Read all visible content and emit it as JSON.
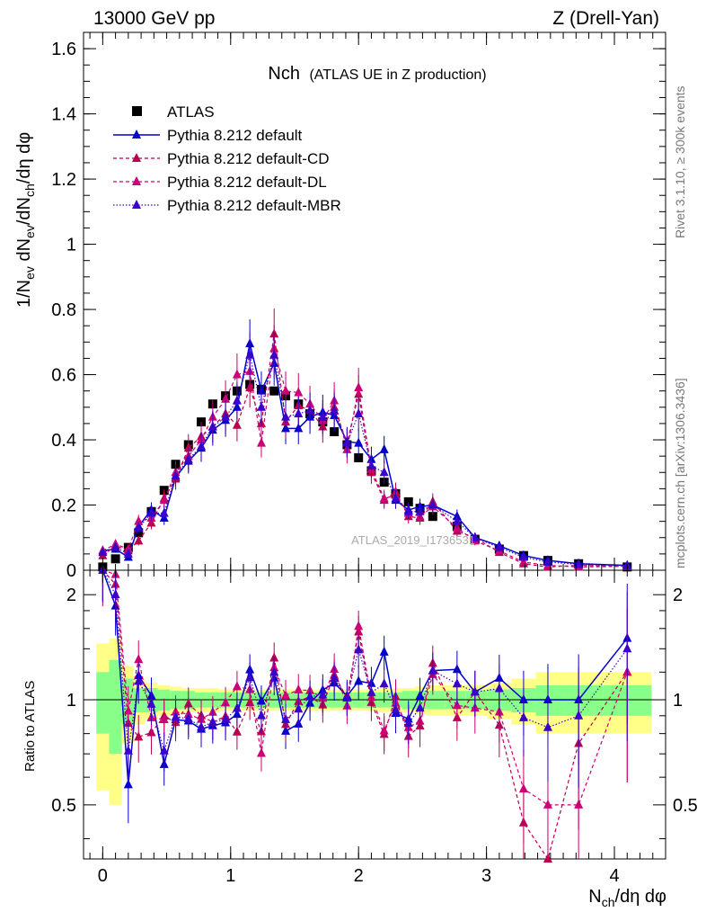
{
  "header": {
    "beam": "13000 GeV pp",
    "process": "Z (Drell-Yan)",
    "rivet": "Rivet 3.1.10, ≥ 300k events",
    "site": "mcplots.cern.ch [arXiv:1306.3436]",
    "watermark": "ATLAS_2019_I1736531"
  },
  "chart_data": {
    "type": "scatter",
    "title": "Nch",
    "subtitle": "(ATLAS UE in Z production)",
    "xlabel": "N_ch/dη dφ",
    "ylabel": "1/N_ev dN_ev/dN_ch/dη dφ",
    "ratio_ylabel": "Ratio to ATLAS",
    "xlim": [
      -0.15,
      4.4
    ],
    "ylim": [
      0,
      1.65
    ],
    "ratio_ylim": [
      0.35,
      2.35
    ],
    "xticks": [
      "0",
      "1",
      "2",
      "3",
      "4"
    ],
    "yticks": [
      "0",
      "0.2",
      "0.4",
      "0.6",
      "0.8",
      "1",
      "1.2",
      "1.4",
      "1.6"
    ],
    "ratio_yticks": [
      "0.5",
      "1",
      "2"
    ],
    "x": [
      0.0,
      0.1,
      0.2,
      0.28,
      0.38,
      0.48,
      0.57,
      0.67,
      0.77,
      0.86,
      0.96,
      1.05,
      1.15,
      1.24,
      1.34,
      1.43,
      1.53,
      1.62,
      1.72,
      1.81,
      1.91,
      2.0,
      2.1,
      2.2,
      2.29,
      2.39,
      2.48,
      2.58,
      2.77,
      2.91,
      3.1,
      3.29,
      3.48,
      3.72,
      4.1
    ],
    "series": [
      {
        "name": "ATLAS",
        "color": "#000000",
        "style": "square",
        "values": [
          0.01,
          0.035,
          0.07,
          0.115,
          0.18,
          0.245,
          0.325,
          0.385,
          0.455,
          0.51,
          0.535,
          0.55,
          0.57,
          0.555,
          0.55,
          0.535,
          0.51,
          0.48,
          0.455,
          0.425,
          0.385,
          0.345,
          0.305,
          0.27,
          0.235,
          0.21,
          0.19,
          0.165,
          0.135,
          0.095,
          0.065,
          0.045,
          0.03,
          0.02,
          0.01
        ]
      },
      {
        "name": "Pythia 8.212 default",
        "color": "#0000cc",
        "style": "solid",
        "values": [
          0.06,
          0.065,
          0.04,
          0.135,
          0.185,
          0.16,
          0.285,
          0.335,
          0.375,
          0.43,
          0.46,
          0.5,
          0.695,
          0.55,
          0.635,
          0.435,
          0.435,
          0.47,
          0.485,
          0.475,
          0.395,
          0.39,
          0.34,
          0.37,
          0.215,
          0.185,
          0.195,
          0.2,
          0.165,
          0.1,
          0.075,
          0.045,
          0.03,
          0.02,
          0.015
        ]
      },
      {
        "name": "Pythia 8.212 default-CD",
        "color": "#b8004e",
        "style": "dashed",
        "values": [
          0.045,
          0.075,
          0.06,
          0.09,
          0.145,
          0.22,
          0.28,
          0.375,
          0.41,
          0.44,
          0.48,
          0.445,
          0.56,
          0.45,
          0.725,
          0.455,
          0.505,
          0.49,
          0.44,
          0.5,
          0.39,
          0.54,
          0.3,
          0.215,
          0.24,
          0.165,
          0.16,
          0.21,
          0.12,
          0.1,
          0.055,
          0.02,
          0.01,
          0.015,
          0.012
        ]
      },
      {
        "name": "Pythia 8.212 default-DL",
        "color": "#cc0077",
        "style": "dashed",
        "values": [
          0.06,
          0.08,
          0.065,
          0.15,
          0.16,
          0.215,
          0.3,
          0.35,
          0.4,
          0.47,
          0.525,
          0.6,
          0.61,
          0.39,
          0.68,
          0.55,
          0.545,
          0.51,
          0.46,
          0.52,
          0.37,
          0.56,
          0.31,
          0.22,
          0.23,
          0.175,
          0.165,
          0.195,
          0.13,
          0.09,
          0.06,
          0.025,
          0.015,
          0.01,
          0.012
        ]
      },
      {
        "name": "Pythia 8.212 default-MBR",
        "color": "#3a00cc",
        "style": "dotted",
        "values": [
          0.055,
          0.07,
          0.05,
          0.13,
          0.175,
          0.175,
          0.29,
          0.34,
          0.38,
          0.44,
          0.47,
          0.52,
          0.66,
          0.5,
          0.66,
          0.47,
          0.48,
          0.49,
          0.47,
          0.49,
          0.39,
          0.48,
          0.32,
          0.3,
          0.22,
          0.18,
          0.18,
          0.2,
          0.15,
          0.1,
          0.07,
          0.04,
          0.025,
          0.018,
          0.014
        ]
      }
    ],
    "ratio_band_green": [
      0.2,
      0.3,
      0.15,
      0.08,
      0.08,
      0.07,
      0.06,
      0.06,
      0.05,
      0.05,
      0.05,
      0.05,
      0.05,
      0.05,
      0.05,
      0.05,
      0.05,
      0.05,
      0.05,
      0.05,
      0.05,
      0.05,
      0.05,
      0.05,
      0.05,
      0.06,
      0.06,
      0.06,
      0.06,
      0.06,
      0.07,
      0.08,
      0.1,
      0.1,
      0.1
    ],
    "ratio_band_yellow": [
      0.45,
      0.5,
      0.25,
      0.15,
      0.12,
      0.1,
      0.09,
      0.08,
      0.08,
      0.08,
      0.07,
      0.07,
      0.07,
      0.07,
      0.07,
      0.07,
      0.07,
      0.07,
      0.07,
      0.07,
      0.07,
      0.07,
      0.07,
      0.08,
      0.08,
      0.08,
      0.09,
      0.1,
      0.1,
      0.1,
      0.12,
      0.15,
      0.2,
      0.2,
      0.2
    ]
  }
}
